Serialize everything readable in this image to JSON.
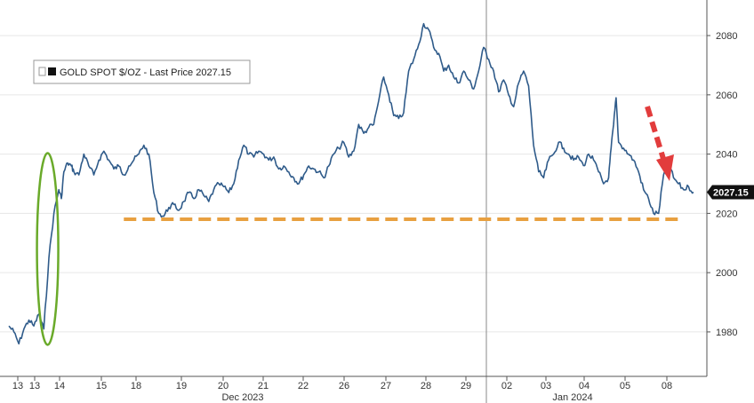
{
  "chart_data": {
    "type": "line",
    "title": "",
    "legend": {
      "label": "GOLD SPOT $/OZ - Last Price 2027.15",
      "placement": "top-left"
    },
    "last_price_label": "2027.15",
    "ylim": [
      1965,
      2092
    ],
    "y_ticks": [
      "1980",
      "2000",
      "2020",
      "2040",
      "2060",
      "2080"
    ],
    "x_ticks": [
      "13",
      "13",
      "14",
      "15",
      "18",
      "19",
      "20",
      "21",
      "22",
      "26",
      "27",
      "28",
      "29",
      "02",
      "03",
      "04",
      "05",
      "08"
    ],
    "month_labels": [
      "Dec 2023",
      "Jan 2024"
    ],
    "grid": "horizontal",
    "series": [
      {
        "name": "GOLD SPOT $/OZ",
        "color": "#2f5b8a",
        "segments": [
          {
            "x": [
              0,
              0.2,
              0.4,
              0.6,
              0.8,
              1.0,
              1.2,
              1.4,
              1.6,
              1.8,
              2.0,
              2.1,
              2.2,
              2.35,
              2.5,
              2.6,
              2.8,
              3.0,
              3.2,
              3.4,
              3.6,
              3.8,
              4.0,
              4.2,
              4.4,
              4.6,
              4.8,
              5.0,
              5.2,
              5.4,
              5.6,
              5.8,
              6.0,
              6.2,
              6.4,
              6.6,
              6.8,
              7.0,
              7.2,
              7.4,
              7.6,
              7.8,
              8.0,
              8.2,
              8.4,
              8.6,
              8.8,
              9.0,
              9.2,
              9.4,
              9.6,
              9.8,
              10.0,
              10.2,
              10.4,
              10.6,
              10.8,
              11.0,
              11.2,
              11.4,
              11.6,
              11.8,
              12.0,
              12.2,
              12.4,
              12.6,
              12.8,
              13.0,
              13.2,
              13.4,
              13.6,
              13.8,
              14.0,
              14.2,
              14.4,
              14.6,
              14.8,
              15.0,
              15.2,
              15.4,
              15.6,
              15.8,
              16.0,
              16.2,
              16.4,
              16.6,
              16.8,
              17.0,
              17.2,
              17.4,
              17.6,
              17.8,
              18.0,
              18.2,
              18.4,
              18.6,
              18.8,
              19.0,
              19.2,
              19.4,
              19.6,
              19.8,
              20.0,
              20.2,
              20.4,
              20.6,
              20.8,
              21.0,
              21.2,
              21.4,
              21.6,
              21.8,
              22.0,
              22.2,
              22.4,
              22.6,
              22.8,
              23.0
            ],
            "y": [
              1982,
              1980,
              1976,
              1981,
              1984,
              1982,
              1986,
              1981,
              2005,
              2020,
              2028,
              2025,
              2034,
              2037,
              2036,
              2034,
              2033,
              2040,
              2036,
              2033,
              2038,
              2041,
              2038,
              2035,
              2036,
              2033,
              2036,
              2038,
              2040,
              2043,
              2040,
              2027,
              2020,
              2019,
              2022,
              2023,
              2021,
              2024,
              2027,
              2025,
              2028,
              2026,
              2024,
              2028,
              2030,
              2029,
              2027,
              2030,
              2038,
              2043,
              2040,
              2039,
              2041,
              2040,
              2038,
              2039,
              2035,
              2036,
              2034,
              2032,
              2030,
              2033,
              2036,
              2035,
              2034,
              2032,
              2036,
              2040,
              2042,
              2044,
              2039,
              2041,
              2050,
              2047,
              2049,
              2050,
              2058,
              2066,
              2060,
              2053,
              2052,
              2054,
              2068,
              2072,
              2077,
              2084,
              2082,
              2076,
              2074,
              2068,
              2070,
              2066,
              2064,
              2068,
              2065,
              2062,
              2068,
              2076,
              2072,
              2068,
              2061,
              2065,
              2060,
              2056,
              2064,
              2068,
              2063,
              2043,
              2034,
              2032,
              2038,
              2040,
              2044,
              2042,
              2040,
              2038,
              2039,
              2036
            ]
          },
          {
            "x": [
              23.0,
              23.2,
              23.4,
              23.6,
              23.8,
              24.0,
              24.1,
              24.2,
              24.3,
              24.4,
              24.6,
              24.8,
              25.0,
              25.2,
              25.4,
              25.6,
              25.8,
              26.0,
              26.2,
              26.4,
              26.6,
              26.8,
              27.0,
              27.2,
              27.4
            ],
            "y": [
              2036,
              2040,
              2038,
              2034,
              2030,
              2032,
              2042,
              2050,
              2059,
              2044,
              2042,
              2040,
              2038,
              2034,
              2028,
              2025,
              2020,
              2020,
              2033,
              2037,
              2032,
              2030,
              2028,
              2029,
              2027.15
            ]
          }
        ]
      }
    ],
    "annotations": [
      {
        "type": "ellipse",
        "color": "#6aaa2a",
        "label": ""
      },
      {
        "type": "support-line",
        "value": 2018,
        "color": "#e8a040",
        "label": ""
      },
      {
        "type": "arrow",
        "color": "#e23c3c",
        "label": ""
      }
    ]
  }
}
